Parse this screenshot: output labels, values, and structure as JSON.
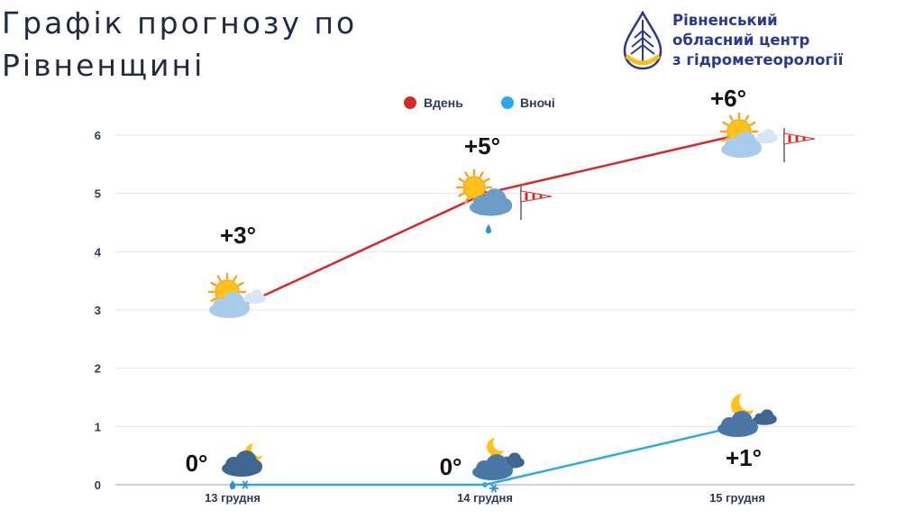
{
  "page": {
    "title_lines": [
      "Графік прогнозу по",
      "Рівненщині"
    ]
  },
  "org": {
    "name_lines": [
      "Рівненський",
      "обласний центр",
      "з гідрометеорології"
    ],
    "logo_icon": "water-drop-logo-icon"
  },
  "chart_data": {
    "type": "line",
    "categories": [
      "13 грудня",
      "14 грудня",
      "15 грудня"
    ],
    "series": [
      {
        "name": "Вдень",
        "color": "#d42a2a",
        "values": [
          3,
          5,
          6
        ],
        "labels": [
          "+3°",
          "+5°",
          "+6°"
        ],
        "icons": [
          "sun-behind-cloud-icon",
          "sun-cloud-rain-icon",
          "sun-behind-cloud-icon"
        ],
        "wind_icons": [
          "",
          "windsock-icon",
          "windsock-icon"
        ]
      },
      {
        "name": "Вночі",
        "color": "#2ea8e6",
        "values": [
          0,
          0,
          1
        ],
        "labels": [
          "0°",
          "0°",
          "+1°"
        ],
        "icons": [
          "moon-cloud-rain-snow-icon",
          "moon-cloud-snow-icon",
          "moon-cloud-icon"
        ]
      }
    ],
    "yticks": [
      0,
      1,
      2,
      3,
      4,
      5,
      6
    ],
    "ylim": [
      0,
      6
    ],
    "grid": true,
    "legend": "top-center",
    "axis_color": "#2d3a5a",
    "grid_color": "#e2e5ea"
  }
}
